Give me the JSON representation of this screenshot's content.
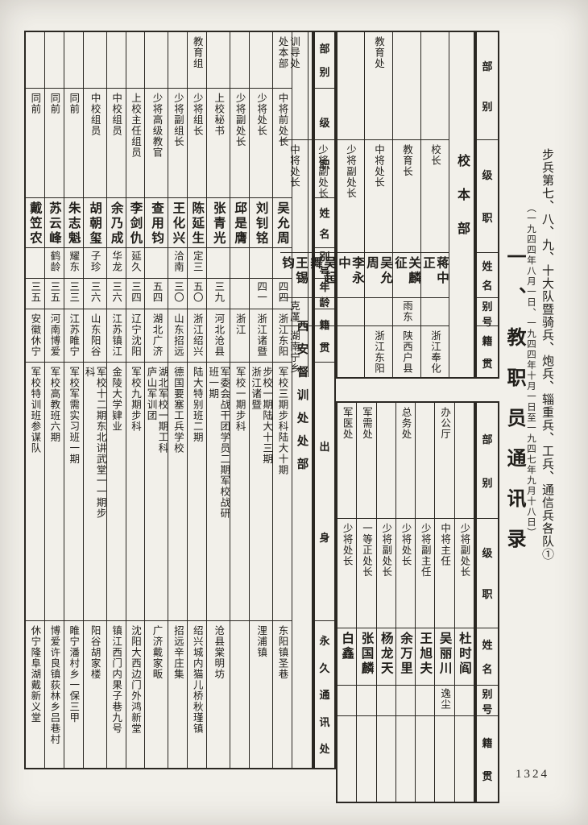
{
  "page": {
    "number": "1324"
  },
  "margin": {
    "book_title": "步兵第七、八、九、十大队暨骑兵、炮兵、辎重兵、工兵、通信兵各队①",
    "book_title_dates": "（一九四四年八月一日、一九四四年十月一日至一九四七年九月十八日）",
    "section_title": "一、教职员通讯录"
  },
  "right_table": {
    "header_fields": [
      "部别",
      "级职",
      "姓名",
      "别号",
      "籍贯"
    ],
    "group_label": "校本部",
    "tier1": [
      {
        "bubie": "",
        "rank": "校长",
        "name": "蒋中正",
        "alias": "",
        "native": "浙江奉化"
      },
      {
        "bubie": "",
        "rank": "教育长",
        "name": "关麟征",
        "alias": "雨东",
        "native": "陕西户县"
      },
      {
        "bubie": "教育处",
        "rank": "中将处长",
        "name": "吴允周",
        "alias": "",
        "native": "浙江东阳"
      },
      {
        "bubie": "",
        "rank": "少将副处长",
        "name": "李永中",
        "alias": "",
        "native": ""
      },
      {
        "bubie": "",
        "rank": "少将副处长",
        "name": "吴起舞",
        "alias": "",
        "native": ""
      },
      {
        "bubie": "训导处",
        "rank": "中将处长",
        "name": "王锡钧",
        "alias": "克厪",
        "native": "湖南宁乡"
      }
    ],
    "tier2": [
      {
        "bubie": "",
        "rank": "少将副处长",
        "name": "杜时阎",
        "alias": "",
        "native": ""
      },
      {
        "bubie": "办公厅",
        "rank": "中将主任",
        "name": "吴丽川",
        "alias": "逸尘",
        "native": ""
      },
      {
        "bubie": "",
        "rank": "少将副主任",
        "name": "王旭夫",
        "alias": "",
        "native": ""
      },
      {
        "bubie": "总务处",
        "rank": "少将处长",
        "name": "余万里",
        "alias": "",
        "native": ""
      },
      {
        "bubie": "",
        "rank": "少将副处长",
        "name": "杨龙天",
        "alias": "",
        "native": ""
      },
      {
        "bubie": "军需处",
        "rank": "一等正处长",
        "name": "张国麟",
        "alias": "",
        "native": ""
      },
      {
        "bubie": "军医处",
        "rank": "少将处长",
        "name": "白鑫",
        "alias": "",
        "native": ""
      }
    ]
  },
  "left_table": {
    "header_fields": [
      "部别",
      "级职",
      "姓名",
      "别号",
      "年龄",
      "籍贯",
      "出身",
      "永久通讯处"
    ],
    "group_label": "西安督训处处部",
    "columns": [
      {
        "bubie": "处本部",
        "rank": "中将前处长",
        "name": "吴允周",
        "alias": "",
        "age": "四四",
        "native": "浙江东阳",
        "origin": "军校三期步科陆大十期",
        "address": "东阳镇圣巷"
      },
      {
        "bubie": "",
        "rank": "少将处长",
        "name": "刘钊铭",
        "alias": "",
        "age": "四一",
        "native": "浙江诸暨",
        "origin": "步校一期陆大十三期\n浙江诸暨",
        "address": "浬浦镇"
      },
      {
        "bubie": "",
        "rank": "少将副处长",
        "name": "邱是膺",
        "alias": "",
        "age": "",
        "native": "浙江",
        "origin": "军校一期步科",
        "address": ""
      },
      {
        "bubie": "",
        "rank": "上校秘书",
        "name": "张青光",
        "alias": "",
        "age": "三九",
        "native": "河北沧县",
        "origin": "军委会战干团学员二期军校战研\n班一期",
        "address": "沧县棠明坊"
      },
      {
        "bubie": "教育组",
        "rank": "少将组长",
        "name": "陈延生",
        "alias": "定三",
        "age": "五〇",
        "native": "浙江绍兴",
        "origin": "陆大特别班二期",
        "address": "绍兴城内猫儿桥秋瑾镇"
      },
      {
        "bubie": "",
        "rank": "少将副组长",
        "name": "王化兴",
        "alias": "洽南",
        "age": "三〇",
        "native": "山东招远",
        "origin": "德国要塞工兵学校",
        "address": "招远辛庄集"
      },
      {
        "bubie": "",
        "rank": "少将高级教官",
        "name": "查用钧",
        "alias": "",
        "age": "五四",
        "native": "湖北广济",
        "origin": "湖北军校一期工科\n庐山军训团",
        "address": "广济戴家畈"
      },
      {
        "bubie": "",
        "rank": "上校主任组员",
        "name": "李剑仇",
        "alias": "延久",
        "age": "三四",
        "native": "辽宁沈阳",
        "origin": "军校九期步科",
        "address": "沈阳大西边门外鸿新堂"
      },
      {
        "bubie": "",
        "rank": "中校组员",
        "name": "余乃成",
        "alias": "华龙",
        "age": "三六",
        "native": "江苏镇江",
        "origin": "金陵大学肄业",
        "address": "镇江西门内果子巷九号"
      },
      {
        "bubie": "",
        "rank": "中校组员",
        "name": "胡朝玺",
        "alias": "子珍",
        "age": "三六",
        "native": "山东阳谷",
        "origin": "军校十二期东北讲武堂一一期步\n科",
        "address": "阳谷胡家楼"
      },
      {
        "bubie": "",
        "rank": "同前",
        "name": "朱志魁",
        "alias": "耀东",
        "age": "三三",
        "native": "江苏睢宁",
        "origin": "军校军需实习班一期",
        "address": "睢宁潘村乡一保三甲"
      },
      {
        "bubie": "",
        "rank": "同前",
        "name": "苏云峰",
        "alias": "鹤龄",
        "age": "三五",
        "native": "河南博爱",
        "origin": "军校高教班六期",
        "address": "博爱许良镇荻林乡吕巷村"
      },
      {
        "bubie": "",
        "rank": "同前",
        "name": "戴笠农",
        "alias": "",
        "age": "三五",
        "native": "安徽休宁",
        "origin": "军校特训班参谋队",
        "address": "休宁隆阜湖戴新义堂"
      }
    ]
  }
}
